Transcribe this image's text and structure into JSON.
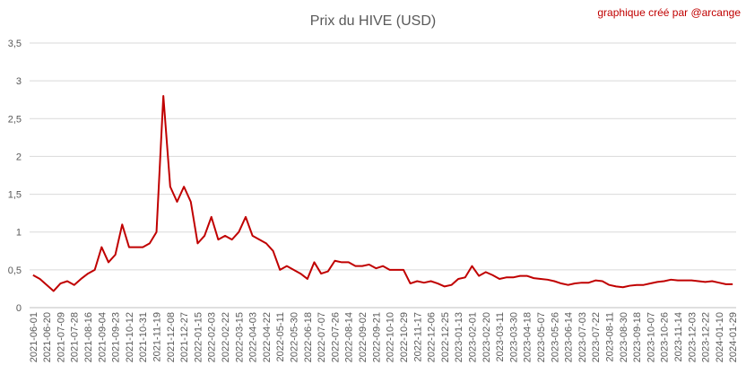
{
  "chart_data": {
    "type": "line",
    "title": "Prix du HIVE (USD)",
    "annotation": "graphique créé par @arcange",
    "categories": [
      "2021-06-01",
      null,
      "2021-06-20",
      null,
      "2021-07-09",
      null,
      "2021-07-28",
      null,
      "2021-08-16",
      null,
      "2021-09-04",
      null,
      "2021-09-23",
      null,
      "2021-10-12",
      null,
      "2021-10-31",
      null,
      "2021-11-19",
      null,
      "2021-12-08",
      null,
      "2021-12-27",
      null,
      "2022-01-15",
      null,
      "2022-02-03",
      null,
      "2022-02-22",
      null,
      "2022-03-15",
      null,
      "2022-04-03",
      null,
      "2022-04-22",
      null,
      "2022-05-11",
      null,
      "2022-05-30",
      null,
      "2022-06-18",
      null,
      "2022-07-07",
      null,
      "2022-07-26",
      null,
      "2022-08-14",
      null,
      "2022-09-02",
      null,
      "2022-09-21",
      null,
      "2022-10-10",
      null,
      "2022-10-29",
      null,
      "2022-11-17",
      null,
      "2022-12-06",
      null,
      "2022-12-25",
      null,
      "2023-01-13",
      null,
      "2023-02-01",
      null,
      "2023-02-20",
      null,
      "2023-03-11",
      null,
      "2023-03-30",
      null,
      "2023-04-18",
      null,
      "2023-05-07",
      null,
      "2023-05-26",
      null,
      "2023-06-14",
      null,
      "2023-07-03",
      null,
      "2023-07-22",
      null,
      "2023-08-11",
      null,
      "2023-08-30",
      null,
      "2023-09-18",
      null,
      "2023-10-07",
      null,
      "2023-10-26",
      null,
      "2023-11-14",
      null,
      "2023-12-03",
      null,
      "2023-12-22",
      null,
      "2024-01-10",
      null,
      "2024-01-29"
    ],
    "values": [
      0.43,
      0.38,
      0.3,
      0.22,
      0.32,
      0.35,
      0.3,
      0.38,
      0.45,
      0.5,
      0.8,
      0.6,
      0.7,
      1.1,
      0.8,
      0.8,
      0.8,
      0.85,
      1.0,
      2.8,
      1.6,
      1.4,
      1.6,
      1.4,
      0.85,
      0.95,
      1.2,
      0.9,
      0.95,
      0.9,
      1.0,
      1.2,
      0.95,
      0.9,
      0.85,
      0.75,
      0.5,
      0.55,
      0.5,
      0.45,
      0.38,
      0.6,
      0.45,
      0.48,
      0.62,
      0.6,
      0.6,
      0.55,
      0.55,
      0.57,
      0.52,
      0.55,
      0.5,
      0.5,
      0.5,
      0.32,
      0.35,
      0.33,
      0.35,
      0.32,
      0.28,
      0.3,
      0.38,
      0.4,
      0.55,
      0.42,
      0.47,
      0.43,
      0.38,
      0.4,
      0.4,
      0.42,
      0.42,
      0.39,
      0.38,
      0.37,
      0.35,
      0.32,
      0.3,
      0.32,
      0.33,
      0.33,
      0.36,
      0.35,
      0.3,
      0.28,
      0.27,
      0.29,
      0.3,
      0.3,
      0.32,
      0.34,
      0.35,
      0.37,
      0.36,
      0.36,
      0.36,
      0.35,
      0.34,
      0.35,
      0.33,
      0.31,
      0.31
    ],
    "color": "#c00000",
    "ylim": [
      0,
      3.5
    ],
    "yticks": [
      0,
      {
        "value": 0.5,
        "label": "0,5"
      },
      1,
      {
        "value": 1.5,
        "label": "1,5"
      },
      2,
      {
        "value": 2.5,
        "label": "2,5"
      },
      3,
      {
        "value": 3.5,
        "label": "3,5"
      }
    ],
    "grid": true
  }
}
